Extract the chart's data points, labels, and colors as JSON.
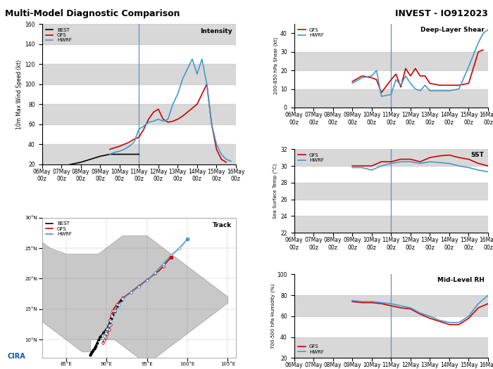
{
  "title_left": "Multi-Model Diagnostic Comparison",
  "title_right": "INVEST - IO912023",
  "x_labels": [
    "06May\n00z",
    "07May\n00z",
    "08May\n00z",
    "09May\n00z",
    "10May\n00z",
    "11May\n00z",
    "12May\n00z",
    "13May\n00z",
    "14May\n00z",
    "15May\n00z",
    "16May\n00z"
  ],
  "intensity": {
    "title": "Intensity",
    "ylabel": "10m Max Wind Speed (kt)",
    "ylim": [
      20,
      160
    ],
    "yticks": [
      20,
      40,
      60,
      80,
      100,
      120,
      140,
      160
    ],
    "best_x": [
      0,
      0.5,
      1,
      1.5,
      2,
      2.5,
      3,
      3.5,
      4,
      4.5,
      5
    ],
    "best_y": [
      15,
      15,
      17,
      20,
      22,
      25,
      28,
      30,
      30,
      30,
      30
    ],
    "gfs_x": [
      3.5,
      4,
      4.25,
      4.5,
      4.75,
      5,
      5.25,
      5.5,
      5.75,
      6,
      6.25,
      6.5,
      6.75,
      7,
      7.25,
      7.5,
      7.75,
      8,
      8.25,
      8.5,
      8.75,
      9,
      9.25,
      9.5
    ],
    "gfs_y": [
      35,
      38,
      40,
      42,
      45,
      47,
      55,
      65,
      72,
      75,
      65,
      62,
      63,
      65,
      68,
      72,
      76,
      80,
      90,
      100,
      60,
      35,
      25,
      22
    ],
    "hwrf_x": [
      3.5,
      3.75,
      4,
      4.25,
      4.5,
      4.75,
      5,
      5.25,
      5.5,
      5.75,
      6,
      6.25,
      6.5,
      6.75,
      7,
      7.25,
      7.5,
      7.75,
      8,
      8.25,
      8.5,
      8.75,
      9,
      9.25,
      9.5,
      9.75
    ],
    "hwrf_y": [
      30,
      32,
      33,
      35,
      38,
      42,
      55,
      58,
      62,
      63,
      65,
      63,
      65,
      80,
      90,
      105,
      115,
      125,
      110,
      125,
      100,
      60,
      40,
      30,
      25,
      23
    ]
  },
  "shear": {
    "title": "Deep-Layer Shear",
    "ylabel": "200-850 hPa Shear (kt)",
    "ylim": [
      0,
      45
    ],
    "yticks": [
      0,
      10,
      20,
      30,
      40
    ],
    "gfs_x": [
      3,
      3.5,
      4,
      4.25,
      4.5,
      5,
      5.25,
      5.5,
      5.75,
      6,
      6.25,
      6.5,
      6.75,
      7,
      7.5,
      8,
      8.5,
      9,
      9.5,
      9.75
    ],
    "gfs_y": [
      14,
      17,
      16,
      15,
      8,
      15,
      18,
      11,
      21,
      17,
      21,
      17,
      17,
      13,
      12,
      12,
      12,
      13,
      30,
      31
    ],
    "hwrf_x": [
      3,
      3.5,
      4,
      4.25,
      4.5,
      5,
      5.25,
      5.5,
      5.75,
      6,
      6.25,
      6.5,
      6.75,
      7,
      7.5,
      8,
      8.5,
      9,
      9.5,
      9.75,
      10
    ],
    "hwrf_y": [
      13,
      16,
      17,
      20,
      6,
      7,
      15,
      12,
      17,
      13,
      10,
      9,
      12,
      9,
      9,
      9,
      10,
      22,
      35,
      40,
      42
    ]
  },
  "sst": {
    "title": "SST",
    "ylabel": "Sea Surface Temp (°C)",
    "ylim": [
      22,
      32
    ],
    "yticks": [
      22,
      24,
      26,
      28,
      30,
      32
    ],
    "gfs_x": [
      3,
      3.5,
      4,
      4.5,
      5,
      5.5,
      6,
      6.5,
      7,
      7.5,
      8,
      8.5,
      9,
      9.5,
      10
    ],
    "gfs_y": [
      30,
      30,
      30,
      30.5,
      30.5,
      30.8,
      30.8,
      30.5,
      31,
      31.2,
      31.3,
      31,
      30.8,
      30.3,
      30
    ],
    "hwrf_x": [
      3,
      3.5,
      4,
      4.5,
      5,
      5.5,
      6,
      6.5,
      7,
      7.5,
      8,
      8.5,
      9,
      9.5,
      10
    ],
    "hwrf_y": [
      29.8,
      29.8,
      29.5,
      30,
      30.3,
      30.5,
      30.5,
      30.3,
      30.5,
      30.4,
      30.3,
      30,
      29.8,
      29.5,
      29.3
    ]
  },
  "rh": {
    "title": "Mid-Level RH",
    "ylabel": "700-500 hPa Humidity (%)",
    "ylim": [
      20,
      100
    ],
    "yticks": [
      20,
      40,
      60,
      80,
      100
    ],
    "gfs_x": [
      3,
      3.5,
      4,
      4.5,
      5,
      5.5,
      6,
      6.5,
      7,
      7.5,
      8,
      8.5,
      9,
      9.5,
      10
    ],
    "gfs_y": [
      74,
      73,
      73,
      72,
      70,
      68,
      67,
      62,
      58,
      55,
      52,
      52,
      58,
      68,
      72
    ],
    "hwrf_x": [
      3,
      3.5,
      4,
      4.5,
      5,
      5.5,
      6,
      6.5,
      7,
      7.5,
      8,
      8.5,
      9,
      9.5,
      10
    ],
    "hwrf_y": [
      75,
      74,
      74,
      73,
      72,
      70,
      68,
      63,
      60,
      56,
      54,
      54,
      60,
      72,
      80
    ]
  },
  "track": {
    "title": "Track",
    "map_xlim": [
      82,
      106
    ],
    "map_ylim": [
      7,
      30
    ],
    "xticks": [
      85,
      90,
      95,
      100,
      105
    ],
    "yticks": [
      10,
      15,
      20,
      25,
      30
    ],
    "best_lon": [
      88.0,
      88.0,
      88.05,
      88.1,
      88.15,
      88.2,
      88.25,
      88.3,
      88.35,
      88.4,
      88.45,
      88.5,
      88.55,
      88.6,
      88.65,
      88.7,
      88.8,
      88.9,
      89.0,
      89.1,
      89.2,
      89.4,
      89.6,
      89.8,
      90.0,
      90.1,
      90.2,
      90.3,
      90.4,
      90.5,
      90.6,
      90.7,
      90.8,
      90.9,
      91.0,
      91.2,
      91.4,
      91.6,
      91.8,
      92.0
    ],
    "best_lat": [
      7.5,
      7.6,
      7.7,
      7.8,
      7.9,
      8.0,
      8.1,
      8.2,
      8.3,
      8.4,
      8.5,
      8.6,
      8.7,
      8.8,
      9.0,
      9.2,
      9.5,
      9.8,
      10.0,
      10.2,
      10.5,
      10.8,
      11.2,
      11.5,
      11.8,
      12.0,
      12.3,
      12.6,
      12.9,
      13.2,
      13.5,
      13.8,
      14.0,
      14.3,
      14.6,
      15.0,
      15.5,
      16.0,
      16.5,
      17.0
    ],
    "gfs_lon": [
      89.5,
      89.6,
      89.7,
      89.8,
      89.9,
      90.0,
      90.1,
      90.2,
      90.3,
      90.4,
      90.5,
      90.5,
      90.4,
      90.5,
      90.6,
      90.7,
      90.8,
      91.0,
      91.3,
      91.6,
      92.0,
      92.5,
      93.0,
      93.5,
      94.0,
      94.5,
      95.0,
      95.5,
      96.0,
      96.5,
      97.0,
      97.5,
      98.0
    ],
    "gfs_lat": [
      9.5,
      9.7,
      9.9,
      10.1,
      10.4,
      10.7,
      11.0,
      11.3,
      11.6,
      12.0,
      12.4,
      12.8,
      13.2,
      13.6,
      14.0,
      14.4,
      14.8,
      15.3,
      15.8,
      16.3,
      16.8,
      17.3,
      17.8,
      18.3,
      18.8,
      19.3,
      19.8,
      20.3,
      20.8,
      21.3,
      22.0,
      22.8,
      23.5
    ],
    "hwrf_lon": [
      89.5,
      89.6,
      89.7,
      89.8,
      89.9,
      90.0,
      90.1,
      90.2,
      90.3,
      90.4,
      90.5,
      90.6,
      90.7,
      90.8,
      91.0,
      91.2,
      91.5,
      91.8,
      92.0,
      92.5,
      93.0,
      93.5,
      94.0,
      94.5,
      95.0,
      95.5,
      96.0,
      96.5,
      97.0,
      97.5,
      98.0,
      98.5,
      99.0,
      99.5,
      100.0
    ],
    "hwrf_lat": [
      10.2,
      10.4,
      10.6,
      10.8,
      11.1,
      11.4,
      11.7,
      12.0,
      12.3,
      12.6,
      13.0,
      13.4,
      13.8,
      14.2,
      14.7,
      15.2,
      15.7,
      16.2,
      16.7,
      17.2,
      17.7,
      18.2,
      18.7,
      19.2,
      19.7,
      20.3,
      21.0,
      21.7,
      22.4,
      23.1,
      23.8,
      24.4,
      25.0,
      25.7,
      26.5
    ]
  },
  "colors": {
    "best": "#000000",
    "gfs": "#cc0000",
    "hwrf": "#4499cc",
    "land": "#c8c8c8",
    "ocean": "#ffffff",
    "border": "#aaaaaa",
    "vline": "#6699cc"
  }
}
